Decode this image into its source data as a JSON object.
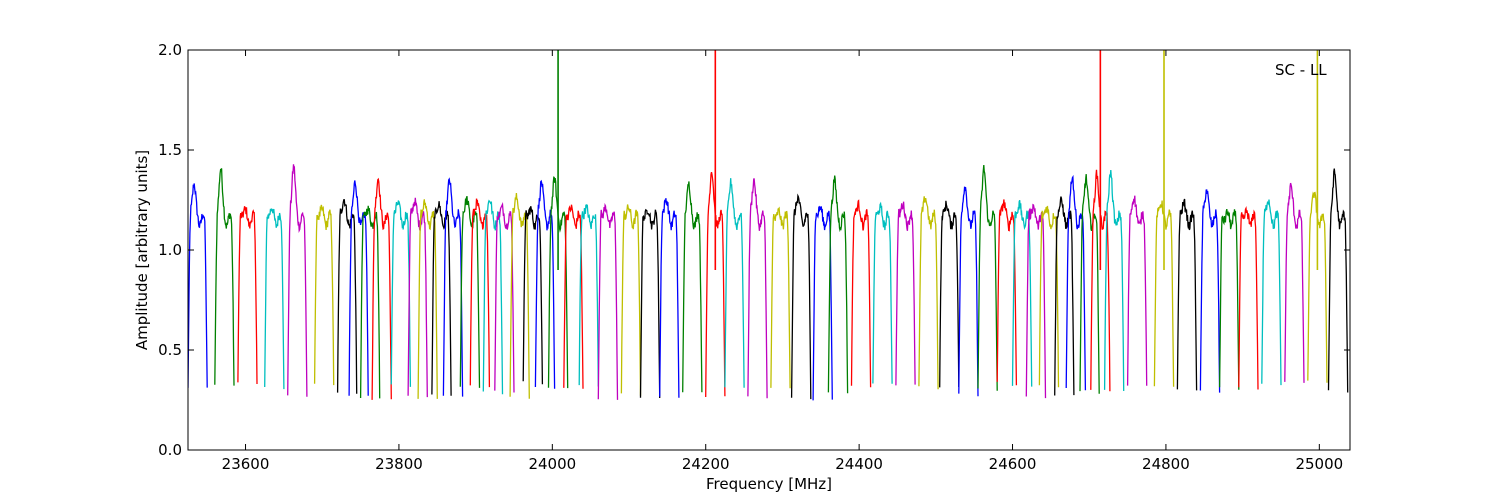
{
  "chart_data": {
    "type": "line",
    "title": "",
    "annotation": "SC - LL",
    "xlabel": "Frequency [MHz]",
    "ylabel": "Amplitude [arbitrary units]",
    "xlim": [
      23525,
      25040
    ],
    "ylim": [
      0.0,
      2.0
    ],
    "xticks": [
      23600,
      23800,
      24000,
      24200,
      24400,
      24600,
      24800,
      25000
    ],
    "yticks": [
      0.0,
      0.5,
      1.0,
      1.5,
      2.0
    ],
    "xtick_labels": [
      "23600",
      "23800",
      "24000",
      "24200",
      "24400",
      "24600",
      "24800",
      "25000"
    ],
    "ytick_labels": [
      "0.0",
      "0.5",
      "1.0",
      "1.5",
      "2.0"
    ],
    "grid": false,
    "legend": "none",
    "channel_width_mhz": 25,
    "color_cycle": [
      "#0000ff",
      "#008000",
      "#ff0000",
      "#00bfbf",
      "#bf00bf",
      "#bfbf00",
      "#000000"
    ],
    "bands": [
      {
        "start": 23525,
        "peak": 1.35,
        "spike": null
      },
      {
        "start": 23560,
        "peak": 1.43,
        "spike": null
      },
      {
        "start": 23590,
        "peak": 1.21,
        "spike": null
      },
      {
        "start": 23625,
        "peak": 1.22,
        "spike": null
      },
      {
        "start": 23655,
        "peak": 1.44,
        "spike": null
      },
      {
        "start": 23690,
        "peak": 1.21,
        "spike": null
      },
      {
        "start": 23720,
        "peak": 1.27,
        "spike": null
      },
      {
        "start": 23735,
        "peak": 1.36,
        "spike": null
      },
      {
        "start": 23750,
        "peak": 1.21,
        "spike": null
      },
      {
        "start": 23765,
        "peak": 1.38,
        "spike": null
      },
      {
        "start": 23790,
        "peak": 1.25,
        "spike": null
      },
      {
        "start": 23812,
        "peak": 1.26,
        "spike": null
      },
      {
        "start": 23825,
        "peak": 1.25,
        "spike": null
      },
      {
        "start": 23843,
        "peak": 1.24,
        "spike": null
      },
      {
        "start": 23858,
        "peak": 1.37,
        "spike": null
      },
      {
        "start": 23880,
        "peak": 1.27,
        "spike": null
      },
      {
        "start": 23893,
        "peak": 1.25,
        "spike": null
      },
      {
        "start": 23910,
        "peak": 1.27,
        "spike": null
      },
      {
        "start": 23925,
        "peak": 1.22,
        "spike": null
      },
      {
        "start": 23945,
        "peak": 1.28,
        "spike": null
      },
      {
        "start": 23962,
        "peak": 1.21,
        "spike": null
      },
      {
        "start": 23978,
        "peak": 1.36,
        "spike": null
      },
      {
        "start": 23995,
        "peak": 1.38,
        "spike": 2.0
      },
      {
        "start": 24015,
        "peak": 1.22,
        "spike": null
      },
      {
        "start": 24035,
        "peak": 1.22,
        "spike": null
      },
      {
        "start": 24060,
        "peak": 1.22,
        "spike": null
      },
      {
        "start": 24090,
        "peak": 1.22,
        "spike": null
      },
      {
        "start": 24115,
        "peak": 1.21,
        "spike": null
      },
      {
        "start": 24140,
        "peak": 1.27,
        "spike": null
      },
      {
        "start": 24170,
        "peak": 1.35,
        "spike": null
      },
      {
        "start": 24200,
        "peak": 1.42,
        "spike": 2.0
      },
      {
        "start": 24225,
        "peak": 1.36,
        "spike": null
      },
      {
        "start": 24255,
        "peak": 1.37,
        "spike": null
      },
      {
        "start": 24285,
        "peak": 1.19,
        "spike": null
      },
      {
        "start": 24312,
        "peak": 1.28,
        "spike": null
      },
      {
        "start": 24340,
        "peak": 1.22,
        "spike": null
      },
      {
        "start": 24360,
        "peak": 1.37,
        "spike": null
      },
      {
        "start": 24390,
        "peak": 1.24,
        "spike": null
      },
      {
        "start": 24418,
        "peak": 1.22,
        "spike": null
      },
      {
        "start": 24448,
        "peak": 1.24,
        "spike": null
      },
      {
        "start": 24478,
        "peak": 1.28,
        "spike": null
      },
      {
        "start": 24505,
        "peak": 1.24,
        "spike": null
      },
      {
        "start": 24530,
        "peak": 1.34,
        "spike": null
      },
      {
        "start": 24555,
        "peak": 1.43,
        "spike": null
      },
      {
        "start": 24580,
        "peak": 1.25,
        "spike": null
      },
      {
        "start": 24600,
        "peak": 1.24,
        "spike": null
      },
      {
        "start": 24618,
        "peak": 1.23,
        "spike": null
      },
      {
        "start": 24635,
        "peak": 1.22,
        "spike": null
      },
      {
        "start": 24655,
        "peak": 1.26,
        "spike": null
      },
      {
        "start": 24670,
        "peak": 1.39,
        "spike": null
      },
      {
        "start": 24688,
        "peak": 1.38,
        "spike": null
      },
      {
        "start": 24702,
        "peak": 1.4,
        "spike": 2.0
      },
      {
        "start": 24720,
        "peak": 1.41,
        "spike": null
      },
      {
        "start": 24750,
        "peak": 1.28,
        "spike": null
      },
      {
        "start": 24785,
        "peak": 1.25,
        "spike": 2.0
      },
      {
        "start": 24815,
        "peak": 1.25,
        "spike": null
      },
      {
        "start": 24845,
        "peak": 1.32,
        "spike": null
      },
      {
        "start": 24870,
        "peak": 1.18,
        "spike": null
      },
      {
        "start": 24895,
        "peak": 1.19,
        "spike": null
      },
      {
        "start": 24925,
        "peak": 1.27,
        "spike": null
      },
      {
        "start": 24955,
        "peak": 1.34,
        "spike": null
      },
      {
        "start": 24985,
        "peak": 1.3,
        "spike": 2.0
      },
      {
        "start": 25012,
        "peak": 1.41,
        "spike": null
      }
    ]
  }
}
